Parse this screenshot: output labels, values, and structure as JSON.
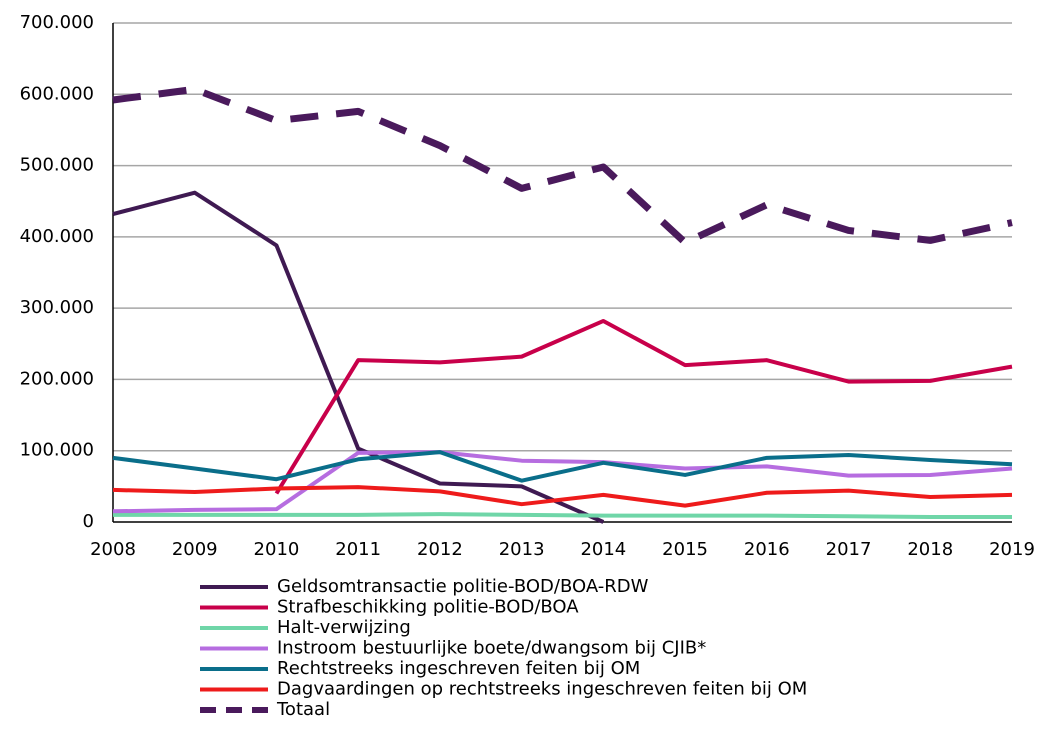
{
  "chart_data": {
    "type": "line",
    "x": [
      2008,
      2009,
      2010,
      2011,
      2012,
      2013,
      2014,
      2015,
      2016,
      2017,
      2018,
      2019
    ],
    "xlim": [
      2008,
      2019
    ],
    "xticks": [
      2008,
      2009,
      2010,
      2011,
      2012,
      2013,
      2014,
      2015,
      2016,
      2017,
      2018,
      2019
    ],
    "ylim": [
      0,
      700000
    ],
    "yticks": [
      0,
      {
        "value": 100000,
        "label": "100.000"
      },
      {
        "value": 200000,
        "label": "200.000"
      },
      {
        "value": 300000,
        "label": "300.000"
      },
      {
        "value": 400000,
        "label": "400.000"
      },
      {
        "value": 500000,
        "label": "500.000"
      },
      {
        "value": 600000,
        "label": "600.000"
      },
      {
        "value": 700000,
        "label": "700.000"
      }
    ],
    "grid": true,
    "legend": "bottom",
    "series": [
      {
        "name": "Geldsomtransactie politie-BOD/BOA-RDW",
        "color": "#3f1a52",
        "values": [
          432000,
          462000,
          388000,
          103000,
          54000,
          50000,
          0,
          null,
          null,
          null,
          null,
          null
        ]
      },
      {
        "name": "Strafbeschikking politie-BOD/BOA",
        "color": "#c8004a",
        "values": [
          null,
          null,
          40000,
          227000,
          224000,
          232000,
          282000,
          220000,
          227000,
          197000,
          198000,
          218000
        ]
      },
      {
        "name": "Halt-verwijzing",
        "color": "#6fd6a8",
        "values": [
          10000,
          10000,
          10000,
          10000,
          11000,
          10000,
          9000,
          9000,
          9000,
          8000,
          7000,
          7000
        ]
      },
      {
        "name": "Instroom bestuurlijke boete/dwangsom bij CJIB*",
        "color": "#b66de0",
        "values": [
          15000,
          17000,
          18000,
          97000,
          98000,
          86000,
          84000,
          75000,
          78000,
          65000,
          66000,
          75000
        ]
      },
      {
        "name": "Rechtstreeks ingeschreven feiten bij OM",
        "color": "#0a6e8a",
        "values": [
          90000,
          75000,
          60000,
          88000,
          98000,
          58000,
          83000,
          66000,
          90000,
          94000,
          87000,
          81000
        ]
      },
      {
        "name": "Dagvaardingen op rechtstreeks ingeschreven feiten bij OM",
        "color": "#ee1b1b",
        "values": [
          45000,
          42000,
          47000,
          49000,
          43000,
          25000,
          38000,
          23000,
          41000,
          44000,
          35000,
          38000
        ]
      },
      {
        "name": "Totaal",
        "color": "#4a1a5c",
        "style": "dashed",
        "values": [
          592000,
          607000,
          563000,
          576000,
          528000,
          468000,
          498000,
          392000,
          445000,
          409000,
          395000,
          420000
        ]
      }
    ]
  }
}
